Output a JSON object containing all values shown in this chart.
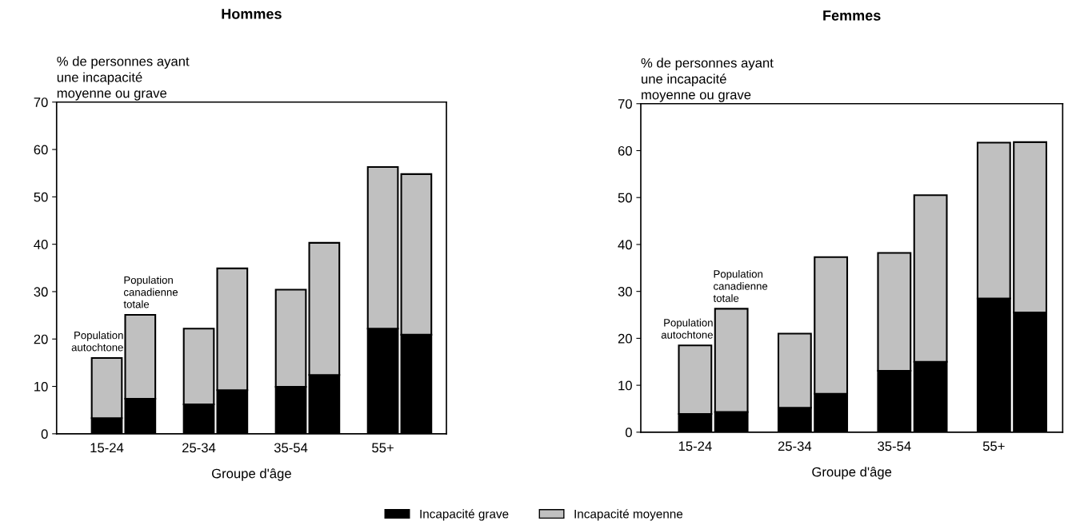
{
  "chart_data": [
    {
      "type": "bar",
      "title": "Hommes",
      "ylabel": "% de personnes ayant\nune incapacité\nmoyenne ou grave",
      "xlabel": "Groupe d'âge",
      "categories": [
        "15-24",
        null,
        "25-34",
        null,
        "35-54",
        null,
        "55+",
        null
      ],
      "stacked": true,
      "ylim": [
        0,
        70
      ],
      "yticks": [
        0,
        10,
        20,
        30,
        40,
        50,
        60,
        70
      ],
      "grid": false,
      "legend": "bottom",
      "series": [
        {
          "name": "Incapacité grave",
          "color": "#000000",
          "values": [
            3.3,
            7.4,
            6.2,
            9.2,
            9.9,
            12.4,
            22.2,
            20.9
          ]
        },
        {
          "name": "Incapacité moyenne",
          "color": "#c0c0c0",
          "values": [
            12.7,
            17.7,
            16.0,
            25.7,
            20.5,
            27.9,
            34.1,
            33.9
          ]
        }
      ],
      "annotations": [
        "Population\nautochtone",
        "Population\ncanadienne\ntotale"
      ]
    },
    {
      "type": "bar",
      "title": "Femmes",
      "ylabel": "% de personnes ayant\nune incapacité\nmoyenne ou grave",
      "xlabel": "Groupe d'âge",
      "categories": [
        "15-24",
        null,
        "25-34",
        null,
        "35-54",
        null,
        "55+",
        null
      ],
      "stacked": true,
      "ylim": [
        0,
        70
      ],
      "yticks": [
        0,
        10,
        20,
        30,
        40,
        50,
        60,
        70
      ],
      "grid": false,
      "series": [
        {
          "color": "#000000",
          "values": [
            3.9,
            4.3,
            5.2,
            8.2,
            13.1,
            15.0,
            28.5,
            25.5
          ]
        },
        {
          "color": "#c0c0c0",
          "values": [
            14.6,
            22.0,
            15.8,
            29.1,
            25.1,
            35.5,
            33.2,
            36.3
          ]
        }
      ],
      "annotations": [
        "Population\nautochtone",
        "Population\ncanadienne\ntotale"
      ]
    }
  ]
}
